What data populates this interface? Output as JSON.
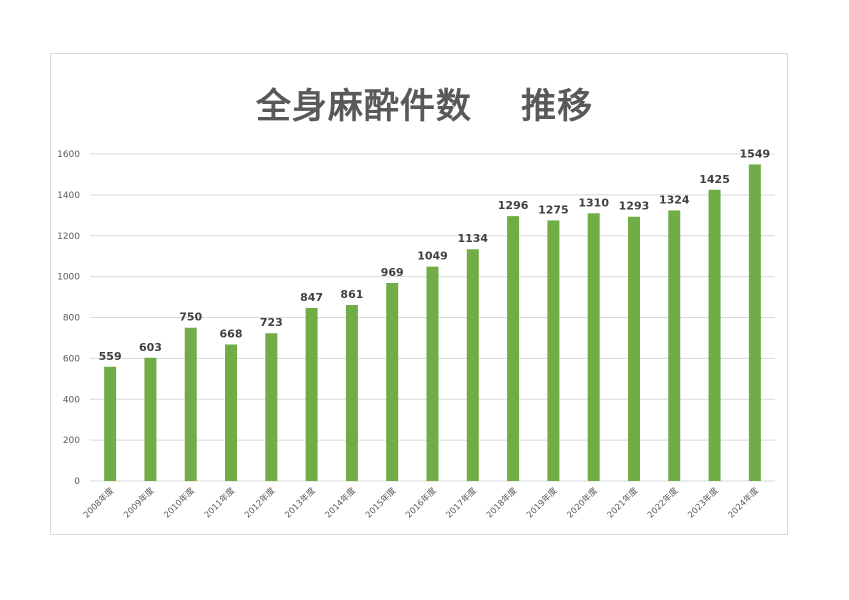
{
  "chart_data": {
    "type": "bar",
    "title": "全身麻酔件数　 推移",
    "categories": [
      "2008年度",
      "2009年度",
      "2010年度",
      "2011年度",
      "2012年度",
      "2013年度",
      "2014年度",
      "2015年度",
      "2016年度",
      "2017年度",
      "2018年度",
      "2019年度",
      "2020年度",
      "2021年度",
      "2022年度",
      "2023年度",
      "2024年度"
    ],
    "values": [
      559,
      603,
      750,
      668,
      723,
      847,
      861,
      969,
      1049,
      1134,
      1296,
      1275,
      1310,
      1293,
      1324,
      1425,
      1549
    ],
    "data_labels": [
      "559",
      "603",
      "750",
      "668",
      "723",
      "847",
      "861",
      "969",
      "1049",
      "1134",
      "1296",
      "1275",
      "1310",
      "1293",
      "1324",
      "1425",
      "1549"
    ],
    "y_ticks": [
      0,
      200,
      400,
      600,
      800,
      1000,
      1200,
      1400,
      1600
    ],
    "y_tick_labels": [
      "0",
      "200",
      "400",
      "600",
      "800",
      "1000",
      "1200",
      "1400",
      "1600"
    ],
    "ylim": [
      0,
      1600
    ],
    "grid": true,
    "legend": "none",
    "bar_color": "#70ad47",
    "grid_color": "#d9d9d9"
  }
}
